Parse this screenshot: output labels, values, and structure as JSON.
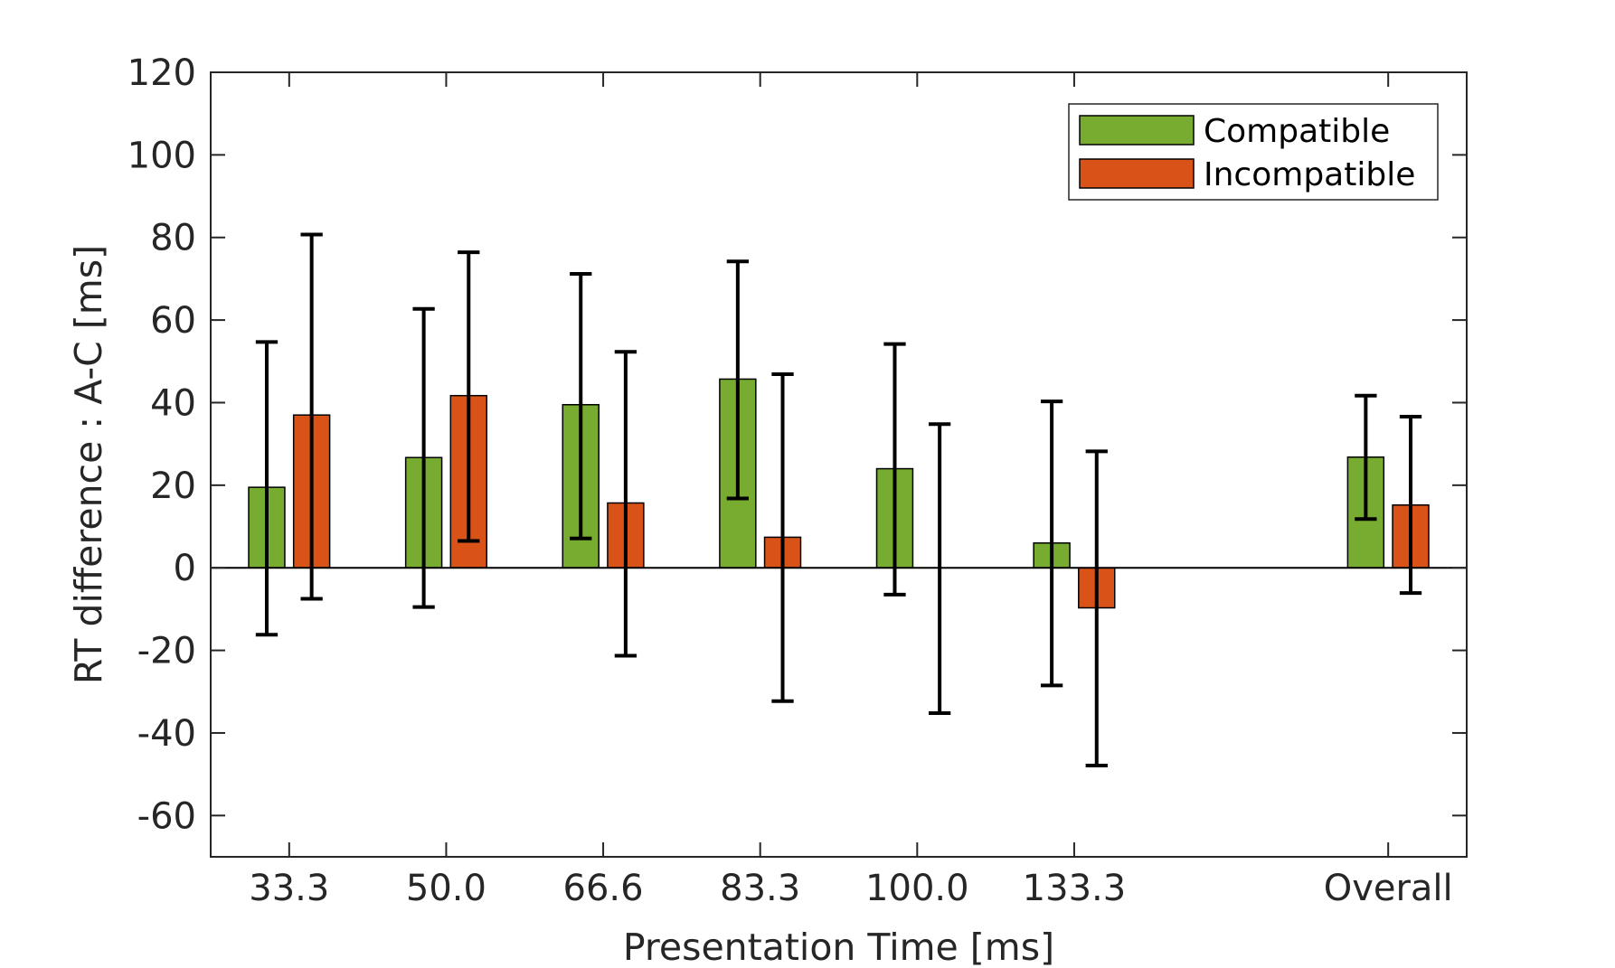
{
  "chart_data": {
    "type": "bar",
    "xlabel": "Presentation Time [ms]",
    "ylabel": "RT difference : A-C [ms]",
    "ylim": [
      -70,
      120
    ],
    "yticks": [
      -60,
      -40,
      -20,
      0,
      20,
      40,
      60,
      80,
      100,
      120
    ],
    "ytick_labels": [
      "-60",
      "-40",
      "-20",
      "0",
      "20",
      "40",
      "60",
      "80",
      "100",
      "120"
    ],
    "categories": [
      "33.3",
      "50.0",
      "66.6",
      "83.3",
      "100.0",
      "133.3",
      "Overall"
    ],
    "category_positions": [
      1,
      2,
      3,
      4,
      5,
      6,
      8
    ],
    "xlim": [
      0.5,
      8.5
    ],
    "grid": false,
    "legend_position": "top-right",
    "series": [
      {
        "name": "Compatible",
        "color": "#77ac30",
        "values": [
          19.5,
          26.7,
          39.5,
          45.7,
          24.0,
          6.0,
          26.8
        ],
        "err_low": [
          -16.2,
          -9.5,
          7.1,
          16.8,
          -6.5,
          -28.5,
          11.8
        ],
        "err_high": [
          54.7,
          62.7,
          71.2,
          74.2,
          54.2,
          40.3,
          41.7
        ]
      },
      {
        "name": "Incompatible",
        "color": "#d95319",
        "values": [
          37.0,
          41.7,
          15.7,
          7.4,
          0,
          -9.7,
          15.2
        ],
        "err_low": [
          -7.5,
          6.5,
          -21.3,
          -32.3,
          -35.2,
          -47.9,
          -6.1
        ],
        "err_high": [
          80.7,
          76.4,
          52.3,
          46.9,
          34.8,
          28.2,
          36.6
        ]
      }
    ]
  }
}
